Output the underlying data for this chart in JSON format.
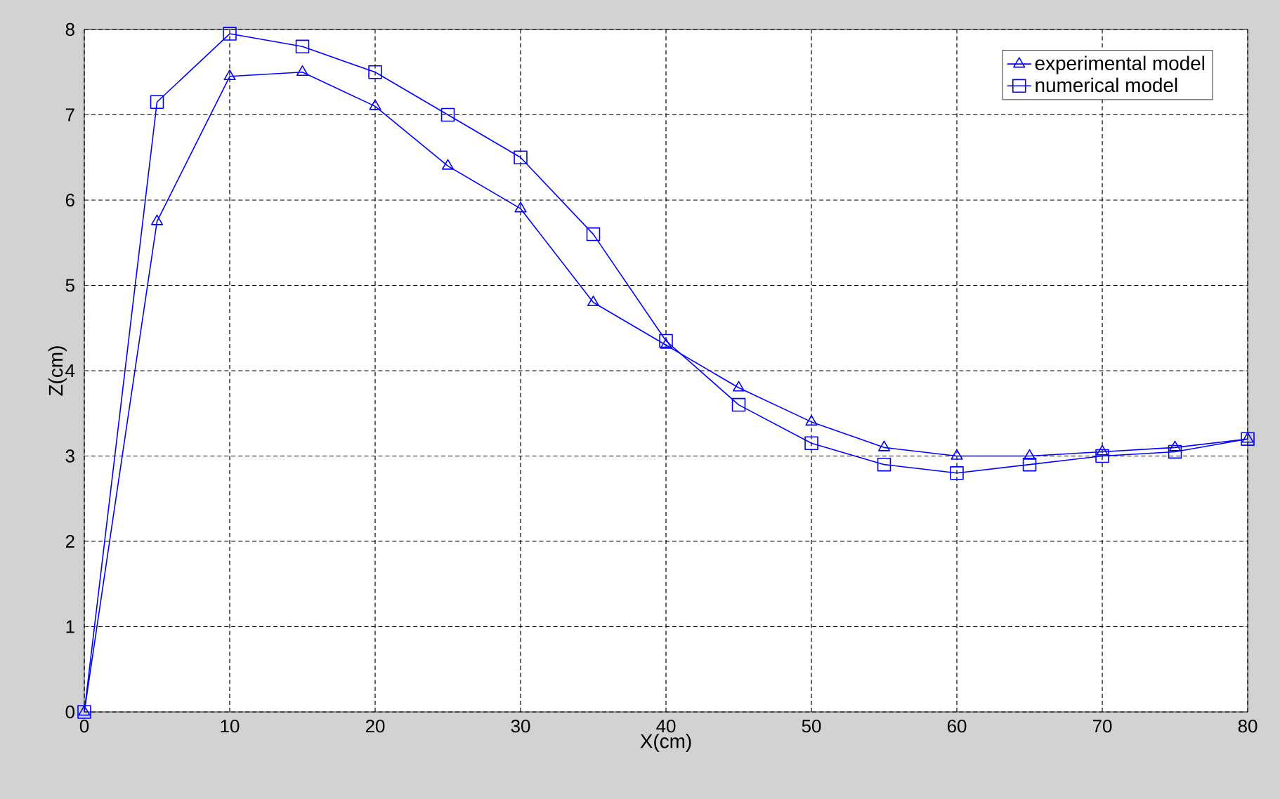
{
  "chart_data": {
    "type": "line",
    "xlabel": "X(cm)",
    "ylabel": "Z(cm)",
    "xlim": [
      0,
      80
    ],
    "ylim": [
      0,
      8
    ],
    "xticks": [
      0,
      10,
      20,
      30,
      40,
      50,
      60,
      70,
      80
    ],
    "yticks": [
      0,
      1,
      2,
      3,
      4,
      5,
      6,
      7,
      8
    ],
    "grid": true,
    "legend": "top right",
    "x": [
      0,
      5,
      10,
      15,
      20,
      25,
      30,
      35,
      40,
      45,
      50,
      55,
      60,
      65,
      70,
      75,
      80
    ],
    "series": [
      {
        "name": "experimental model",
        "color": "#0000ff",
        "marker": "triangle",
        "values": [
          0,
          5.75,
          7.45,
          7.5,
          7.1,
          6.4,
          5.9,
          4.8,
          4.3,
          3.8,
          3.4,
          3.1,
          3.0,
          3.0,
          3.05,
          3.1,
          3.2
        ]
      },
      {
        "name": "numerical model",
        "color": "#0000fe",
        "marker": "square",
        "values": [
          0,
          7.15,
          7.95,
          7.8,
          7.5,
          7.0,
          6.5,
          5.6,
          4.35,
          3.6,
          3.15,
          2.9,
          2.8,
          2.9,
          3.0,
          3.05,
          3.2
        ]
      }
    ]
  }
}
